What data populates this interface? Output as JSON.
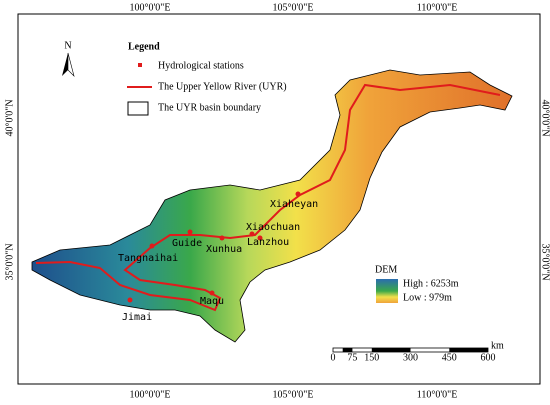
{
  "map": {
    "lon_labels_top": [
      "100°0'0\"E",
      "105°0'0\"E",
      "110°0'0\"E"
    ],
    "lon_labels_bottom": [
      "100°0'0\"E",
      "105°0'0\"E",
      "110°0'0\"E"
    ],
    "lat_labels_left": [
      "40°0'0\"N",
      "35°0'0\"N"
    ],
    "lat_labels_right": [
      "40°0'0\"N",
      "35°0'0\"N"
    ],
    "north": "N",
    "legend": {
      "title": "Legend",
      "items": [
        "Hydrological stations",
        "The Upper Yellow River (UYR)",
        "The UYR basin boundary"
      ]
    },
    "stations": [
      "Maqu",
      "Jimai",
      "Tangnaihai",
      "Guide",
      "Xunhua",
      "Xiaochuan",
      "Lanzhou",
      "Xiaheyan"
    ],
    "dem": {
      "title": "DEM",
      "high": "High : 6253m",
      "low": "Low : 979m"
    },
    "scale": {
      "labels": [
        "0",
        "75",
        "150",
        "300",
        "450",
        "600"
      ],
      "unit": "km"
    }
  }
}
